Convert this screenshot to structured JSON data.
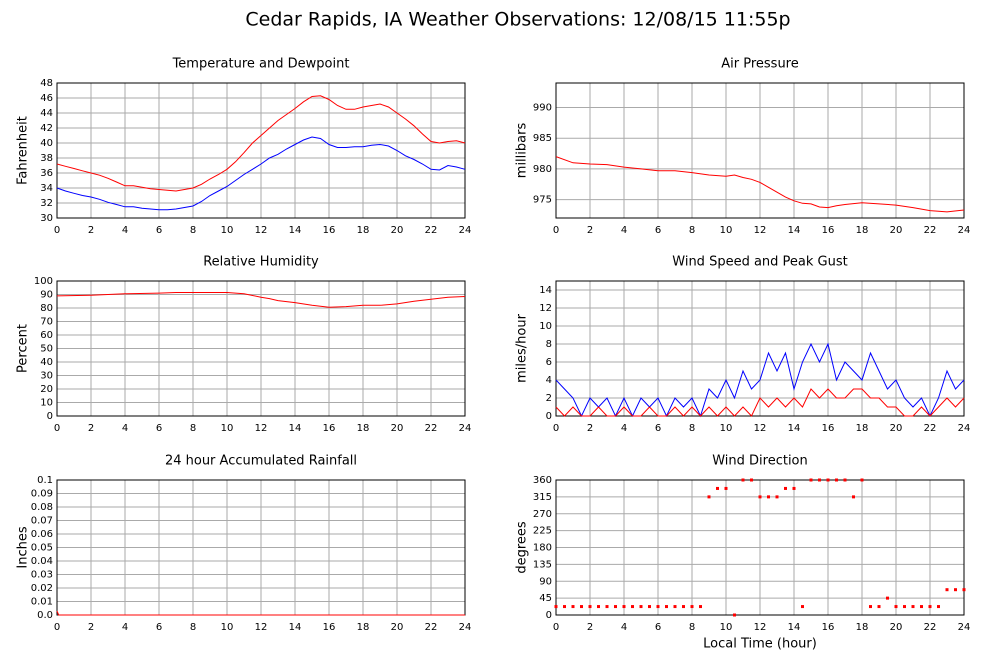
{
  "title": "Cedar Rapids, IA Weather Observations: 12/08/15 11:55p",
  "chart_data": [
    {
      "type": "line",
      "title": "Temperature and Dewpoint",
      "ylabel": "Fahrenheit",
      "xlim": [
        0,
        24
      ],
      "xticks": [
        0,
        2,
        4,
        6,
        8,
        10,
        12,
        14,
        16,
        18,
        20,
        22,
        24
      ],
      "ylim": [
        30,
        48
      ],
      "yticks": [
        30,
        32,
        34,
        36,
        38,
        40,
        42,
        44,
        46,
        48
      ],
      "grid": true,
      "x": [
        0,
        0.5,
        1,
        1.5,
        2,
        2.5,
        3,
        3.5,
        4,
        4.5,
        5,
        5.5,
        6,
        6.5,
        7,
        7.5,
        8,
        8.5,
        9,
        9.5,
        10,
        10.5,
        11,
        11.5,
        12,
        12.5,
        13,
        13.5,
        14,
        14.5,
        15,
        15.5,
        16,
        16.5,
        17,
        17.5,
        18,
        18.5,
        19,
        19.5,
        20,
        20.5,
        21,
        21.5,
        22,
        22.5,
        23,
        23.5,
        24
      ],
      "series": [
        {
          "color": "#ff0000",
          "values": [
            37.2,
            36.9,
            36.6,
            36.3,
            36.0,
            35.7,
            35.3,
            34.8,
            34.3,
            34.3,
            34.1,
            33.9,
            33.8,
            33.7,
            33.6,
            33.8,
            34.0,
            34.5,
            35.2,
            35.8,
            36.5,
            37.5,
            38.7,
            40,
            41,
            42,
            43,
            43.8,
            44.6,
            45.5,
            46.2,
            46.3,
            45.8,
            45.0,
            44.5,
            44.5,
            44.8,
            45.0,
            45.2,
            44.8,
            44.0,
            43.2,
            42.3,
            41.2,
            40.2,
            40.0,
            40.2,
            40.3,
            40.0
          ]
        },
        {
          "color": "#0000ff",
          "values": [
            34,
            33.6,
            33.3,
            33,
            32.8,
            32.5,
            32.1,
            31.8,
            31.5,
            31.5,
            31.3,
            31.2,
            31.1,
            31.1,
            31.2,
            31.4,
            31.6,
            32.2,
            33,
            33.6,
            34.2,
            35,
            35.8,
            36.5,
            37.2,
            38,
            38.5,
            39.2,
            39.8,
            40.4,
            40.8,
            40.6,
            39.8,
            39.4,
            39.4,
            39.5,
            39.5,
            39.7,
            39.8,
            39.6,
            39.0,
            38.3,
            37.8,
            37.2,
            36.5,
            36.4,
            37.0,
            36.8,
            36.5
          ]
        }
      ]
    },
    {
      "type": "line",
      "title": "Air Pressure",
      "ylabel": "millibars",
      "xlim": [
        0,
        24
      ],
      "xticks": [
        0,
        2,
        4,
        6,
        8,
        10,
        12,
        14,
        16,
        18,
        20,
        22,
        24
      ],
      "ylim": [
        972,
        994
      ],
      "yticks": [
        975,
        980,
        985,
        990
      ],
      "grid": true,
      "x": [
        0,
        1,
        2,
        3,
        4,
        5,
        6,
        7,
        8,
        9,
        10,
        10.5,
        11,
        11.5,
        12,
        12.5,
        13,
        13.5,
        14,
        14.5,
        15,
        15.5,
        16,
        16.5,
        17,
        18,
        19,
        20,
        21,
        22,
        23,
        24
      ],
      "series": [
        {
          "color": "#ff0000",
          "values": [
            982,
            981,
            980.8,
            980.7,
            980.3,
            980,
            979.7,
            979.7,
            979.4,
            979,
            978.8,
            979,
            978.6,
            978.3,
            977.8,
            977,
            976.2,
            975.4,
            974.8,
            974.4,
            974.3,
            973.8,
            973.7,
            974,
            974.2,
            974.5,
            974.3,
            974.1,
            973.7,
            973.2,
            973,
            973.3
          ]
        }
      ]
    },
    {
      "type": "line",
      "title": "Relative Humidity",
      "ylabel": "Percent",
      "xlim": [
        0,
        24
      ],
      "xticks": [
        0,
        2,
        4,
        6,
        8,
        10,
        12,
        14,
        16,
        18,
        20,
        22,
        24
      ],
      "ylim": [
        0,
        100
      ],
      "yticks": [
        0,
        10,
        20,
        30,
        40,
        50,
        60,
        70,
        80,
        90,
        100
      ],
      "grid": true,
      "x": [
        0,
        2,
        4,
        6,
        7,
        8,
        10,
        11,
        12,
        12.5,
        13,
        14,
        15,
        16,
        17,
        18,
        19,
        20,
        21,
        22,
        23,
        24
      ],
      "series": [
        {
          "color": "#ff0000",
          "values": [
            89,
            89.5,
            90.5,
            91,
            91.5,
            91.5,
            91.5,
            90.5,
            88,
            87,
            85.5,
            84,
            82,
            80.5,
            81,
            82,
            82,
            83,
            85,
            86.5,
            88,
            88.5
          ]
        }
      ]
    },
    {
      "type": "line",
      "title": "Wind Speed and Peak Gust",
      "ylabel": "miles/hour",
      "xlim": [
        0,
        24
      ],
      "xticks": [
        0,
        2,
        4,
        6,
        8,
        10,
        12,
        14,
        16,
        18,
        20,
        22,
        24
      ],
      "ylim": [
        0,
        15
      ],
      "yticks": [
        0,
        2,
        4,
        6,
        8,
        10,
        12,
        14
      ],
      "grid": true,
      "x": [
        0,
        0.5,
        1,
        1.5,
        2,
        2.5,
        3,
        3.5,
        4,
        4.5,
        5,
        5.5,
        6,
        6.5,
        7,
        7.5,
        8,
        8.5,
        9,
        9.5,
        10,
        10.5,
        11,
        11.5,
        12,
        12.5,
        13,
        13.5,
        14,
        14.5,
        15,
        15.5,
        16,
        16.5,
        17,
        17.5,
        18,
        18.5,
        19,
        19.5,
        20,
        20.5,
        21,
        21.5,
        22,
        22.5,
        23,
        23.5,
        24
      ],
      "series": [
        {
          "color": "#0000ff",
          "values": [
            4,
            3,
            2,
            0,
            2,
            1,
            2,
            0,
            2,
            0,
            2,
            1,
            2,
            0,
            2,
            1,
            2,
            0,
            3,
            2,
            4,
            2,
            5,
            3,
            4,
            7,
            5,
            7,
            3,
            6,
            8,
            6,
            8,
            4,
            6,
            5,
            4,
            7,
            5,
            3,
            4,
            2,
            1,
            2,
            0,
            2,
            5,
            3,
            4
          ]
        },
        {
          "color": "#ff0000",
          "values": [
            1,
            0,
            1,
            0,
            0,
            1,
            0,
            0,
            1,
            0,
            0,
            1,
            0,
            0,
            1,
            0,
            1,
            0,
            1,
            0,
            1,
            0,
            1,
            0,
            2,
            1,
            2,
            1,
            2,
            1,
            3,
            2,
            3,
            2,
            2,
            3,
            3,
            2,
            2,
            1,
            1,
            0,
            0,
            1,
            0,
            1,
            2,
            1,
            2
          ]
        }
      ]
    },
    {
      "type": "line",
      "title": "24 hour Accumulated Rainfall",
      "ylabel": "Inches",
      "xlim": [
        0,
        24
      ],
      "xticks": [
        0,
        2,
        4,
        6,
        8,
        10,
        12,
        14,
        16,
        18,
        20,
        22,
        24
      ],
      "ylim": [
        0,
        0.1
      ],
      "yticks": [
        {
          "value": 0,
          "label": "0.0"
        },
        0.01,
        0.02,
        0.03,
        0.04,
        0.05,
        0.06,
        0.07,
        0.08,
        0.09,
        0.1
      ],
      "grid": true,
      "x": [
        0,
        0.1,
        24
      ],
      "series": [
        {
          "color": "#ff0000",
          "values": [
            0.003,
            0,
            0
          ]
        }
      ]
    },
    {
      "type": "scatter",
      "title": "Wind Direction",
      "ylabel": "degrees",
      "xlabel": "Local Time (hour)",
      "xlim": [
        0,
        24
      ],
      "xticks": [
        0,
        2,
        4,
        6,
        8,
        10,
        12,
        14,
        16,
        18,
        20,
        22,
        24
      ],
      "ylim": [
        0,
        360
      ],
      "yticks": [
        0,
        45,
        90,
        135,
        180,
        225,
        270,
        315,
        360
      ],
      "grid": true,
      "x": [
        0,
        0.5,
        1,
        1.5,
        2,
        2.5,
        3,
        3.5,
        4,
        4.5,
        5,
        5.5,
        6,
        6.5,
        7,
        7.5,
        8,
        8.5,
        9,
        9.5,
        10,
        10.5,
        11,
        11.5,
        12,
        12.5,
        13,
        13.5,
        14,
        14.5,
        15,
        15.5,
        16,
        16.5,
        17,
        17.5,
        18,
        18.5,
        19,
        19.5,
        20,
        20.5,
        21,
        21.5,
        22,
        22.5,
        23,
        23.5,
        24
      ],
      "series": [
        {
          "color": "#ff0000",
          "values": [
            22.5,
            22.5,
            22.5,
            22.5,
            22.5,
            22.5,
            22.5,
            22.5,
            22.5,
            22.5,
            22.5,
            22.5,
            22.5,
            22.5,
            22.5,
            22.5,
            22.5,
            22.5,
            315,
            337.5,
            337.5,
            0,
            360,
            360,
            315,
            315,
            315,
            337.5,
            337.5,
            22.5,
            360,
            360,
            360,
            360,
            360,
            315,
            360,
            22.5,
            22.5,
            45,
            22.5,
            22.5,
            22.5,
            22.5,
            22.5,
            22.5,
            67.5,
            67.5,
            67.5
          ]
        }
      ]
    }
  ]
}
